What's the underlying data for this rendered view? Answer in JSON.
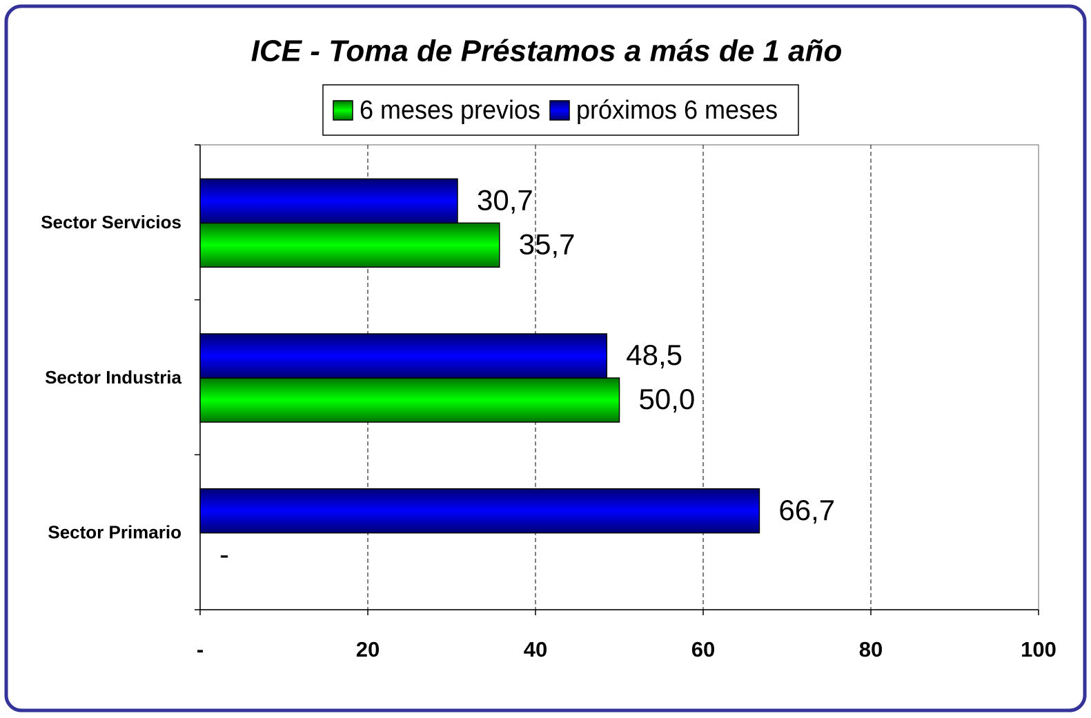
{
  "chart_data": {
    "type": "barh",
    "title": "ICE - Toma de Préstamos a más de 1 año",
    "categories": [
      "Sector Servicios",
      "Sector Industria",
      "Sector Primario"
    ],
    "series": [
      {
        "name": "6 meses previos",
        "color": "#00ff00",
        "values": [
          35.7,
          50.0,
          0
        ],
        "value_labels": [
          "35,7",
          "50,0",
          "-"
        ]
      },
      {
        "name": "próximos 6 meses",
        "color": "#0000ff",
        "values": [
          30.7,
          48.5,
          66.7
        ],
        "value_labels": [
          "30,7",
          "48,5",
          "66,7"
        ]
      }
    ],
    "xlim": [
      0,
      100
    ],
    "xticks": [
      {
        "value": 0,
        "label": "-"
      },
      20,
      40,
      60,
      80,
      100
    ],
    "grid": true,
    "legend": "top"
  }
}
